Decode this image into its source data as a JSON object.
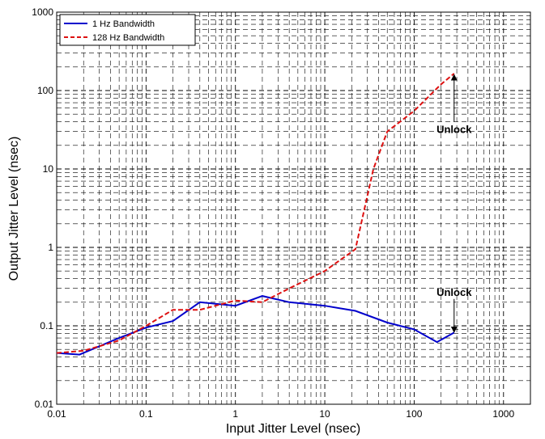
{
  "chart_data": {
    "type": "line",
    "title": "",
    "xlabel": "Input Jitter Level (nsec)",
    "ylabel": "Output Jitter Level (nsec)",
    "xscale": "log",
    "yscale": "log",
    "xlim": [
      0.01,
      2000
    ],
    "ylim": [
      0.01,
      1000
    ],
    "grid": "dashed, major and minor",
    "legend_position": "top-left",
    "x_ticks": [
      "0.01",
      "0.1",
      "1",
      "10",
      "100",
      "1000"
    ],
    "y_ticks": [
      "0.01",
      "0.1",
      "1",
      "10",
      "100",
      "1000"
    ],
    "series": [
      {
        "name": "1 Hz Bandwidth",
        "color": "#0000CC",
        "style": "solid",
        "x": [
          0.01,
          0.018,
          0.05,
          0.1,
          0.2,
          0.4,
          1,
          2,
          4,
          10,
          22,
          50,
          100,
          180,
          280
        ],
        "y": [
          0.045,
          0.043,
          0.07,
          0.095,
          0.115,
          0.2,
          0.18,
          0.24,
          0.2,
          0.18,
          0.155,
          0.11,
          0.09,
          0.062,
          0.082
        ]
      },
      {
        "name": "128 Hz Bandwidth",
        "color": "#DD1111",
        "style": "dashed",
        "x": [
          0.01,
          0.02,
          0.05,
          0.1,
          0.2,
          0.4,
          1,
          2,
          4,
          10,
          22,
          35,
          50,
          100,
          200,
          280
        ],
        "y": [
          0.045,
          0.048,
          0.065,
          0.1,
          0.16,
          0.16,
          0.21,
          0.2,
          0.3,
          0.5,
          0.95,
          10,
          30,
          55,
          120,
          165
        ]
      }
    ],
    "annotations": [
      {
        "text": "Unlock",
        "arrow_from": [
          280,
          40
        ],
        "arrow_to": [
          280,
          155
        ]
      },
      {
        "text": "Unlock",
        "arrow_from": [
          280,
          0.22
        ],
        "arrow_to": [
          280,
          0.085
        ]
      }
    ]
  }
}
